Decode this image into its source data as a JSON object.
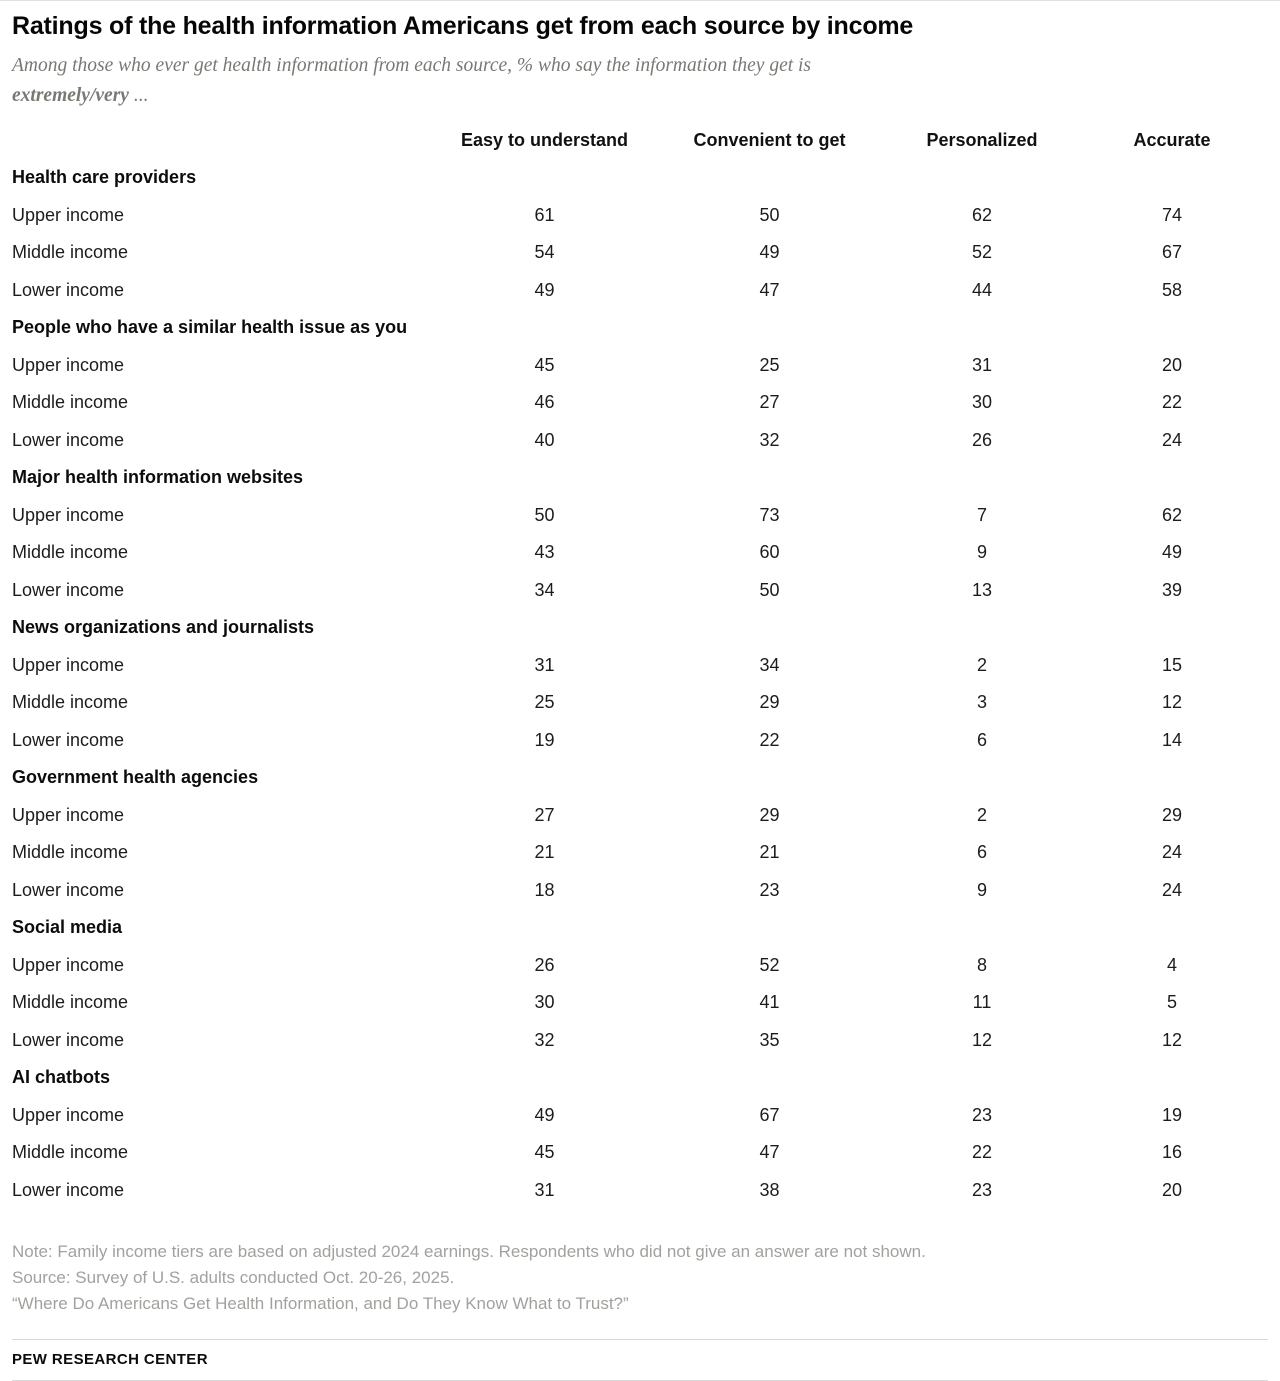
{
  "chart_data": {
    "type": "table",
    "title": "Ratings of the health information Americans get from each source by income",
    "subtitle": "Among those who ever get health information from each source, % who say the information they get is extremely/very ...",
    "subtitle_parts": {
      "lead": "Among those who ever get health information from each source, % who say the information they get is",
      "emphasis": "extremely/very",
      "trail": " ..."
    },
    "columns": [
      "Easy to understand",
      "Convenient to get",
      "Personalized",
      "Accurate"
    ],
    "row_groups": [
      {
        "label": "Health care providers",
        "rows": [
          {
            "label": "Upper income",
            "values": [
              61,
              50,
              62,
              74
            ]
          },
          {
            "label": "Middle income",
            "values": [
              54,
              49,
              52,
              67
            ]
          },
          {
            "label": "Lower income",
            "values": [
              49,
              47,
              44,
              58
            ]
          }
        ]
      },
      {
        "label": "People who have a similar health issue as you",
        "rows": [
          {
            "label": "Upper income",
            "values": [
              45,
              25,
              31,
              20
            ]
          },
          {
            "label": "Middle income",
            "values": [
              46,
              27,
              30,
              22
            ]
          },
          {
            "label": "Lower income",
            "values": [
              40,
              32,
              26,
              24
            ]
          }
        ]
      },
      {
        "label": "Major health information websites",
        "rows": [
          {
            "label": "Upper income",
            "values": [
              50,
              73,
              7,
              62
            ]
          },
          {
            "label": "Middle income",
            "values": [
              43,
              60,
              9,
              49
            ]
          },
          {
            "label": "Lower income",
            "values": [
              34,
              50,
              13,
              39
            ]
          }
        ]
      },
      {
        "label": "News organizations and journalists",
        "rows": [
          {
            "label": "Upper income",
            "values": [
              31,
              34,
              2,
              15
            ]
          },
          {
            "label": "Middle income",
            "values": [
              25,
              29,
              3,
              12
            ]
          },
          {
            "label": "Lower income",
            "values": [
              19,
              22,
              6,
              14
            ]
          }
        ]
      },
      {
        "label": "Government health agencies",
        "rows": [
          {
            "label": "Upper income",
            "values": [
              27,
              29,
              2,
              29
            ]
          },
          {
            "label": "Middle income",
            "values": [
              21,
              21,
              6,
              24
            ]
          },
          {
            "label": "Lower income",
            "values": [
              18,
              23,
              9,
              24
            ]
          }
        ]
      },
      {
        "label": "Social media",
        "rows": [
          {
            "label": "Upper income",
            "values": [
              26,
              52,
              8,
              4
            ]
          },
          {
            "label": "Middle income",
            "values": [
              30,
              41,
              11,
              5
            ]
          },
          {
            "label": "Lower income",
            "values": [
              32,
              35,
              12,
              12
            ]
          }
        ]
      },
      {
        "label": "AI chatbots",
        "rows": [
          {
            "label": "Upper income",
            "values": [
              49,
              67,
              23,
              19
            ]
          },
          {
            "label": "Middle income",
            "values": [
              45,
              47,
              22,
              16
            ]
          },
          {
            "label": "Lower income",
            "values": [
              31,
              38,
              23,
              20
            ]
          }
        ]
      }
    ]
  },
  "footer": {
    "note": "Note: Family income tiers are based on adjusted 2024 earnings. Respondents who did not give an answer are not shown.",
    "source": "Source: Survey of U.S. adults conducted Oct. 20-26, 2025.",
    "report": "“Where Do Americans Get Health Information, and Do They Know What to Trust?”",
    "brand": "PEW RESEARCH CENTER"
  }
}
